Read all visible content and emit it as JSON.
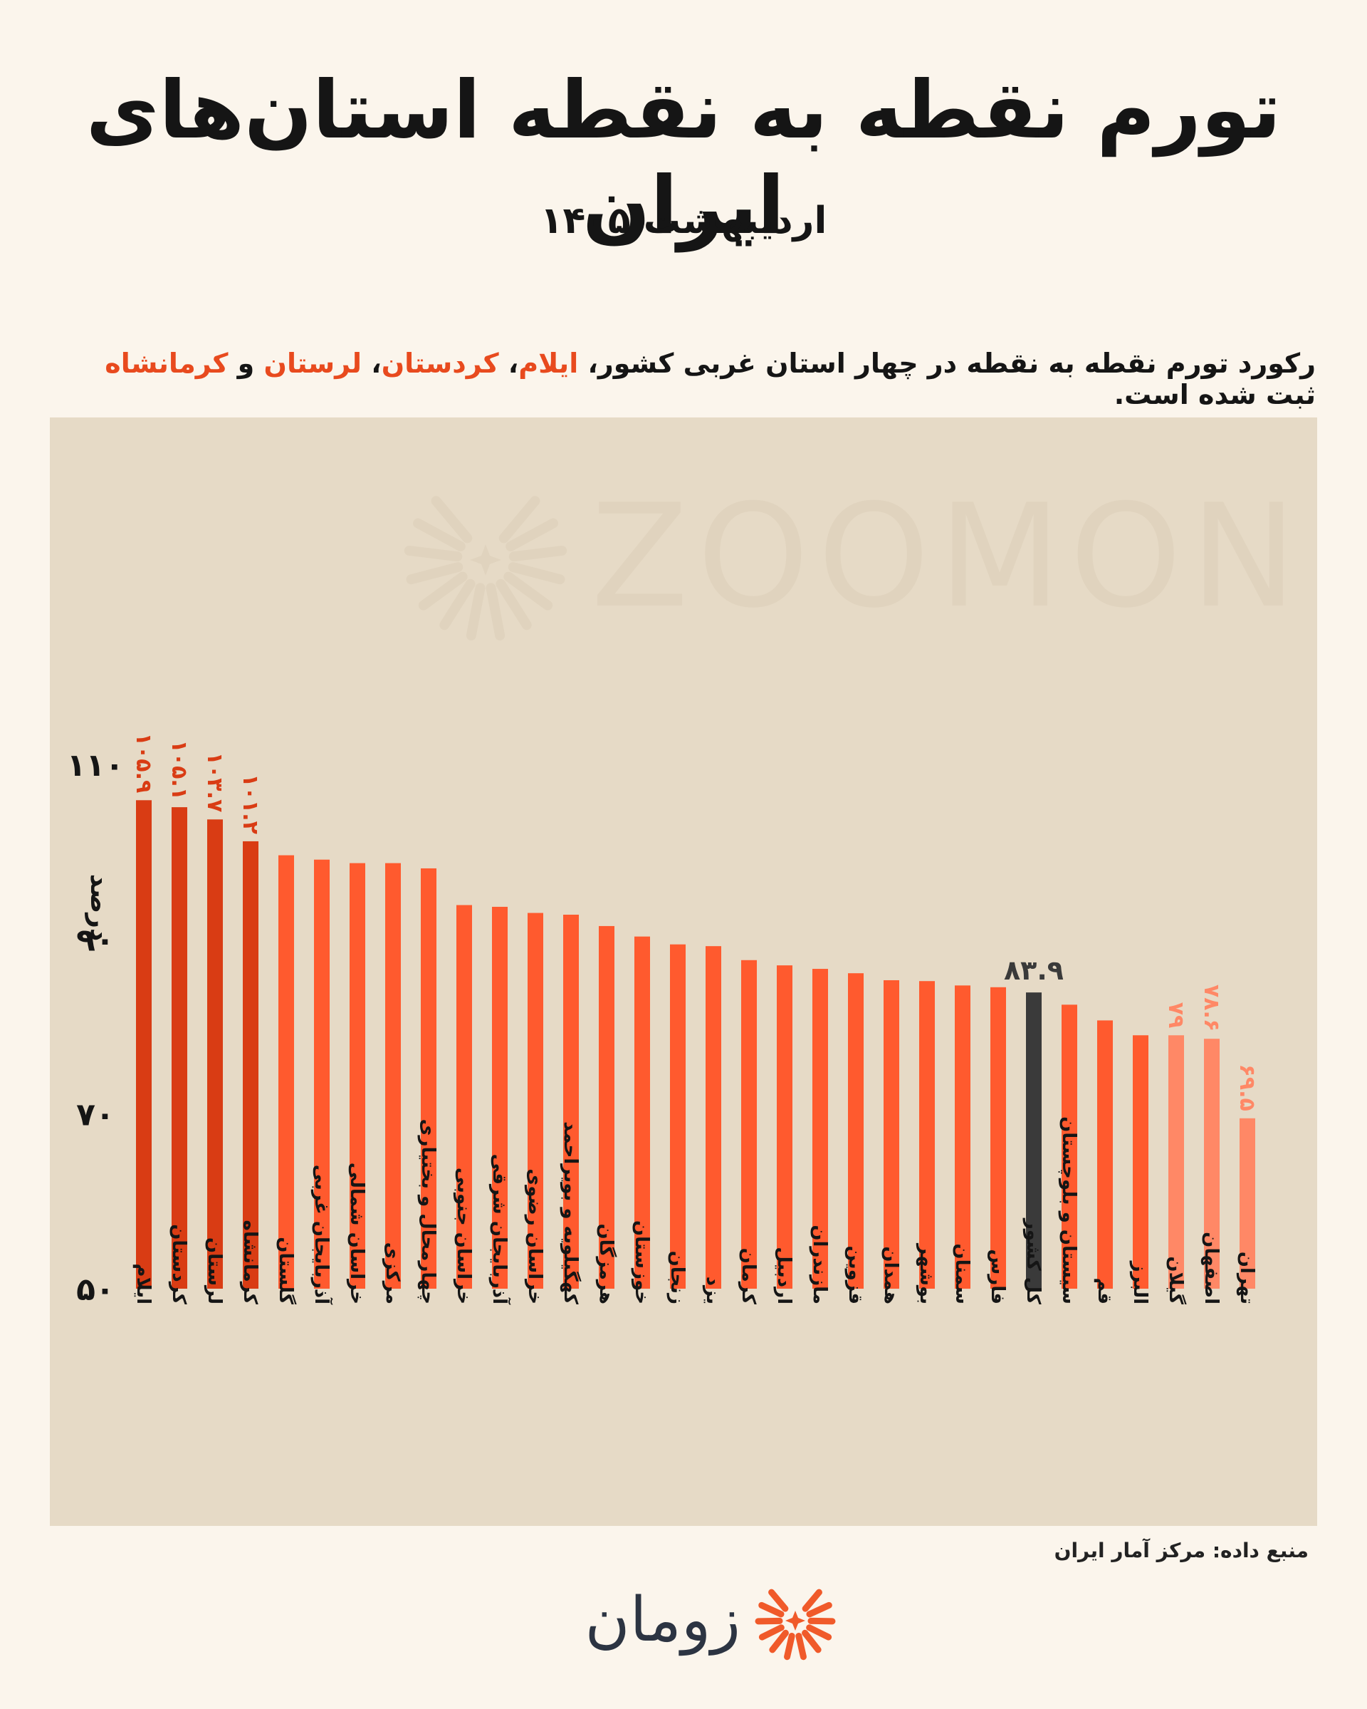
{
  "header": {
    "title": "تورم نقطه به نقطه استان‌های ایران",
    "subtitle": "اردیبهشت ۱۴۰۵"
  },
  "lead": {
    "part1": "رکورد تورم نقطه به نقطه در چهار استان غربی کشور، ",
    "hl1": "ایلام",
    "sep1": "، ",
    "hl2": "کردستان",
    "sep2": "، ",
    "hl3": "لرستان",
    "sep3": " و ",
    "hl4": "کرمانشاه",
    "part2": " ثبت شده است."
  },
  "source": "منبع داده: مرکز آمار ایران",
  "brand": {
    "name": "زومان",
    "watermark": "ZOOMON"
  },
  "colors": {
    "top": "#d93c14",
    "normal": "#ff5a2e",
    "total": "#3a3a3a",
    "low": "#ff8866",
    "accent": "#e84a1e"
  },
  "chart_data": {
    "type": "bar",
    "ylabel": "درصد",
    "ylim": [
      50,
      110
    ],
    "yticks": [
      {
        "value": 50,
        "label": "۵۰"
      },
      {
        "value": 70,
        "label": "۷۰"
      },
      {
        "value": 90,
        "label": "۹۰"
      },
      {
        "value": 110,
        "label": "۱۱۰"
      }
    ],
    "categories": [
      "ایلام",
      "کردستان",
      "لرستان",
      "کرمانشاه",
      "گلستان",
      "آذربایجان غربی",
      "خراسان شمالی",
      "مرکزی",
      "چهارمحال و بختیاری",
      "خراسان جنوبی",
      "آذربایجان شرقی",
      "خراسان رضوی",
      "کهگیلویه و بویراحمد",
      "هرمزگان",
      "خوزستان",
      "زنجان",
      "یزد",
      "کرمان",
      "اردبیل",
      "مازندران",
      "قزوین",
      "همدان",
      "بوشهر",
      "سمنان",
      "فارس",
      "کل کشور",
      "سیستان و بلوچستان",
      "قم",
      "البرز",
      "گیلان",
      "اصفهان",
      "تهران"
    ],
    "values": [
      105.9,
      105.1,
      103.7,
      101.2,
      99.6,
      99.1,
      98.7,
      98.7,
      98.1,
      93.9,
      93.7,
      93.0,
      92.8,
      91.5,
      90.3,
      89.4,
      89.2,
      87.6,
      87.0,
      86.6,
      86.1,
      85.3,
      85.2,
      84.7,
      84.5,
      83.9,
      82.5,
      80.7,
      79.0,
      79.0,
      78.6,
      69.5
    ],
    "labels": [
      "۱۰۵.۹",
      "۱۰۵.۱",
      "۱۰۳.۷",
      "۱۰۱.۲",
      "",
      "",
      "",
      "",
      "",
      "",
      "",
      "",
      "",
      "",
      "",
      "",
      "",
      "",
      "",
      "",
      "",
      "",
      "",
      "",
      "",
      "۸۳.۹",
      "",
      "",
      "",
      "۷۹",
      "۷۸.۶",
      "۶۹.۵"
    ],
    "groups": [
      "top",
      "top",
      "top",
      "top",
      "normal",
      "normal",
      "normal",
      "normal",
      "normal",
      "normal",
      "normal",
      "normal",
      "normal",
      "normal",
      "normal",
      "normal",
      "normal",
      "normal",
      "normal",
      "normal",
      "normal",
      "normal",
      "normal",
      "normal",
      "normal",
      "total",
      "normal",
      "normal",
      "normal",
      "low",
      "low",
      "low"
    ]
  }
}
